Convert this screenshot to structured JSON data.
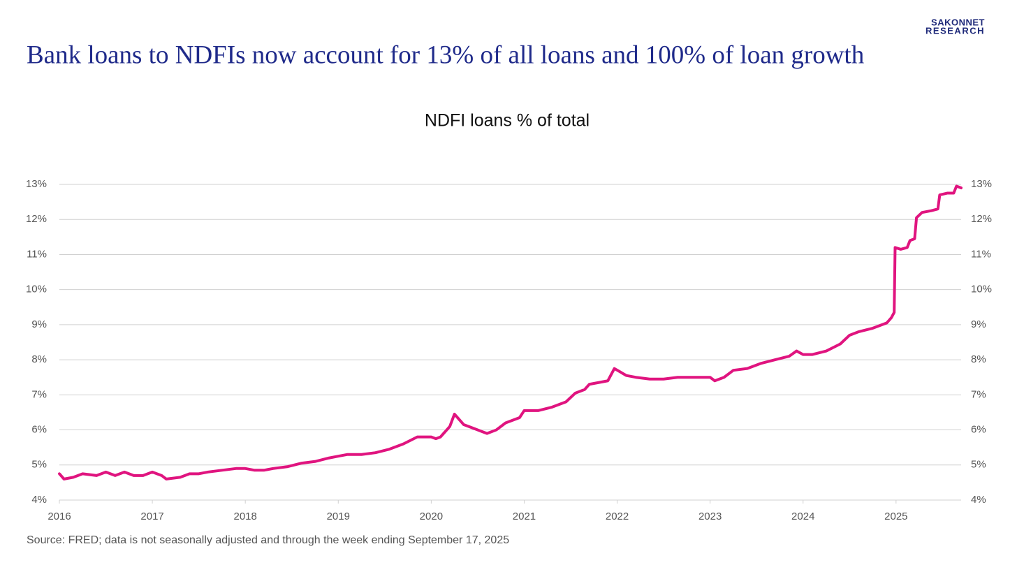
{
  "brand": {
    "line1": "SAKONNET",
    "line2": "RESEARCH"
  },
  "chart_data": {
    "type": "line",
    "headline": "Bank loans to NDFIs now account for 13% of all loans and 100% of loan growth",
    "title": "NDFI loans % of total",
    "source": "Source: FRED; data is not seasonally adjusted and through the week ending September 17, 2025",
    "x": [
      2016.0,
      2016.05,
      2016.15,
      2016.25,
      2016.4,
      2016.5,
      2016.6,
      2016.7,
      2016.8,
      2016.9,
      2017.0,
      2017.1,
      2017.15,
      2017.3,
      2017.4,
      2017.5,
      2017.6,
      2017.75,
      2017.9,
      2018.0,
      2018.1,
      2018.2,
      2018.3,
      2018.45,
      2018.6,
      2018.75,
      2018.9,
      2019.0,
      2019.1,
      2019.25,
      2019.4,
      2019.55,
      2019.7,
      2019.85,
      2020.0,
      2020.05,
      2020.1,
      2020.2,
      2020.25,
      2020.3,
      2020.35,
      2020.45,
      2020.55,
      2020.6,
      2020.7,
      2020.8,
      2020.95,
      2021.0,
      2021.15,
      2021.3,
      2021.45,
      2021.55,
      2021.65,
      2021.7,
      2021.8,
      2021.9,
      2021.97,
      2022.1,
      2022.2,
      2022.35,
      2022.5,
      2022.65,
      2022.75,
      2022.9,
      2023.0,
      2023.05,
      2023.15,
      2023.25,
      2023.4,
      2023.55,
      2023.7,
      2023.85,
      2023.93,
      2024.0,
      2024.1,
      2024.25,
      2024.4,
      2024.5,
      2024.6,
      2024.75,
      2024.9,
      2024.95,
      2024.98,
      2024.99,
      2025.05,
      2025.12,
      2025.15,
      2025.2,
      2025.22,
      2025.28,
      2025.38,
      2025.45,
      2025.47,
      2025.55,
      2025.62,
      2025.65,
      2025.7
    ],
    "series": [
      {
        "name": "NDFI loans % of total",
        "color": "#e0147f",
        "values": [
          4.75,
          4.6,
          4.65,
          4.75,
          4.7,
          4.8,
          4.7,
          4.8,
          4.7,
          4.7,
          4.8,
          4.7,
          4.6,
          4.65,
          4.75,
          4.75,
          4.8,
          4.85,
          4.9,
          4.9,
          4.85,
          4.85,
          4.9,
          4.95,
          5.05,
          5.1,
          5.2,
          5.25,
          5.3,
          5.3,
          5.35,
          5.45,
          5.6,
          5.8,
          5.8,
          5.75,
          5.8,
          6.1,
          6.45,
          6.3,
          6.15,
          6.05,
          5.95,
          5.9,
          6.0,
          6.2,
          6.35,
          6.55,
          6.55,
          6.65,
          6.8,
          7.05,
          7.15,
          7.3,
          7.35,
          7.4,
          7.75,
          7.55,
          7.5,
          7.45,
          7.45,
          7.5,
          7.5,
          7.5,
          7.5,
          7.4,
          7.5,
          7.7,
          7.75,
          7.9,
          8.0,
          8.1,
          8.25,
          8.15,
          8.15,
          8.25,
          8.45,
          8.7,
          8.8,
          8.9,
          9.05,
          9.2,
          9.35,
          11.2,
          11.15,
          11.2,
          11.4,
          11.45,
          12.05,
          12.2,
          12.25,
          12.3,
          12.7,
          12.75,
          12.75,
          12.95,
          12.9
        ]
      }
    ],
    "xlim": [
      2016,
      2025.7
    ],
    "xticks": [
      2016,
      2017,
      2018,
      2019,
      2020,
      2021,
      2022,
      2023,
      2024,
      2025
    ],
    "ylim": [
      4,
      13
    ],
    "yticks": [
      {
        "value": 4,
        "label": "4%"
      },
      {
        "value": 5,
        "label": "5%"
      },
      {
        "value": 6,
        "label": "6%"
      },
      {
        "value": 7,
        "label": "7%"
      },
      {
        "value": 8,
        "label": "8%"
      },
      {
        "value": 9,
        "label": "9%"
      },
      {
        "value": 10,
        "label": "10%"
      },
      {
        "value": 11,
        "label": "11%"
      },
      {
        "value": 12,
        "label": "12%"
      },
      {
        "value": 13,
        "label": "13%"
      }
    ],
    "grid": true,
    "right_axis_labels": true
  }
}
